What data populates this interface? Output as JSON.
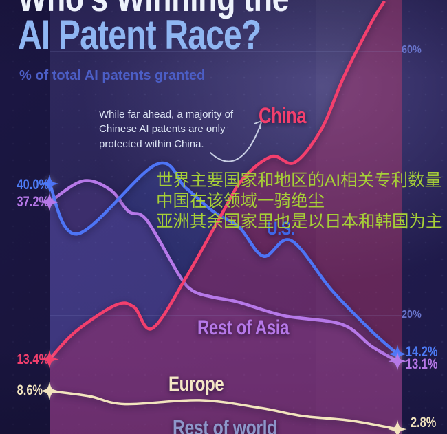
{
  "page": {
    "title_cropped": "Who's Winning the",
    "title": "AI Patent Race?",
    "subtitle": "% of total AI patents granted"
  },
  "annotation": {
    "text": "While far ahead, a majority of Chinese AI patents are only protected within China.",
    "arrow": "curved-arrow-to-china-line"
  },
  "overlay": {
    "color": "#a6cf37",
    "lines": [
      "世界主要国家和地区的AI相关专利数量",
      "中国在该领域一骑绝尘",
      "亚洲其余国家里也是以日本和韩国为主"
    ]
  },
  "value_labels": {
    "us_start": "40.0%",
    "asia_start": "37.2%",
    "china_start": "13.4%",
    "europe_start": "8.6%",
    "us_end": "14.2%",
    "asia_end": "13.1%",
    "europe_end": "2.8%"
  },
  "colors": {
    "background": "#231d51",
    "title": "#8fb6f2",
    "subtitle": "#4c5ec6",
    "annotation_text": "#dce4f4",
    "china": "#f23f6d",
    "us": "#4d74f5",
    "rest_of_asia": "#b678e8",
    "europe": "#f2e4be",
    "rest_of_world_label": "#8d96c9",
    "gridline_label": "#6974cc",
    "overlay_text": "#a6cf37"
  },
  "chart_data": {
    "type": "line",
    "title": "Who's Winning the AI Patent Race?",
    "subtitle": "% of total AI patents granted",
    "x_axis": {
      "label": "",
      "tick_labels_visible": false,
      "note": "time axis, year tick labels cropped below bottom edge"
    },
    "y_axis": {
      "unit": "%",
      "range_visible": [
        0,
        67
      ],
      "gridlines": [
        {
          "label": "60%",
          "pct": 60
        },
        {
          "label": "20%",
          "pct": 20
        }
      ]
    },
    "legend_position": "inline-labels-on-chart",
    "series": [
      {
        "name": "China",
        "color": "#f23f6d",
        "fill": "rgba(206,42,96,0.34)",
        "line_width": 4.5,
        "start_label": "13.4%",
        "end_label": null,
        "end_star": false,
        "note": "line rises past 60% and exits the top edge of the image",
        "points": [
          {
            "f": 0,
            "v": 13.4
          },
          {
            "f": 0.075,
            "v": 17.6
          },
          {
            "f": 0.19,
            "v": 21.6
          },
          {
            "f": 0.243,
            "v": 21.3
          },
          {
            "f": 0.296,
            "v": 18.1
          },
          {
            "f": 0.397,
            "v": 26.2
          },
          {
            "f": 0.496,
            "v": 35.5
          },
          {
            "f": 0.555,
            "v": 40.7
          },
          {
            "f": 0.638,
            "v": 44.1
          },
          {
            "f": 0.704,
            "v": 43.2
          },
          {
            "f": 0.781,
            "v": 48.2
          },
          {
            "f": 0.846,
            "v": 56.2
          },
          {
            "f": 0.925,
            "v": 64.4
          },
          {
            "f": 0.961,
            "v": 67.5
          }
        ]
      },
      {
        "name": "U.S.",
        "color": "#4d74f5",
        "fill": "rgba(77,116,245,0.16)",
        "line_width": 4.5,
        "start_label": "40.0%",
        "end_label": "14.2%",
        "end_star": true,
        "points": [
          {
            "f": 0,
            "v": 40.0
          },
          {
            "f": 0.081,
            "v": 32.4
          },
          {
            "f": 0.306,
            "v": 42.9
          },
          {
            "f": 0.391,
            "v": 39.4
          },
          {
            "f": 0.47,
            "v": 35.8
          },
          {
            "f": 0.545,
            "v": 33.4
          },
          {
            "f": 0.615,
            "v": 29.0
          },
          {
            "f": 0.694,
            "v": 31.4
          },
          {
            "f": 0.812,
            "v": 23.8
          },
          {
            "f": 0.925,
            "v": 17.7
          },
          {
            "f": 1,
            "v": 14.2
          }
        ]
      },
      {
        "name": "Rest of Asia",
        "color": "#b678e8",
        "fill": "rgba(170,110,230,0.15)",
        "line_width": 4.5,
        "start_label": "37.2%",
        "end_label": "13.1%",
        "end_star": true,
        "points": [
          {
            "f": 0,
            "v": 37.2
          },
          {
            "f": 0.095,
            "v": 40.4
          },
          {
            "f": 0.174,
            "v": 39.1
          },
          {
            "f": 0.227,
            "v": 35.8
          },
          {
            "f": 0.279,
            "v": 34.5
          },
          {
            "f": 0.372,
            "v": 26.2
          },
          {
            "f": 0.411,
            "v": 23.8
          },
          {
            "f": 0.47,
            "v": 22.8
          },
          {
            "f": 0.54,
            "v": 22.1
          },
          {
            "f": 0.674,
            "v": 20.0
          },
          {
            "f": 0.84,
            "v": 18.7
          },
          {
            "f": 0.925,
            "v": 15.4
          },
          {
            "f": 1,
            "v": 13.1
          }
        ]
      },
      {
        "name": "Europe",
        "color": "#f2e4be",
        "fill": "rgba(242,228,190,0.06)",
        "line_width": 3.5,
        "start_label": "8.6%",
        "end_label": "2.8%",
        "end_star": true,
        "points": [
          {
            "f": 0,
            "v": 8.6
          },
          {
            "f": 0.115,
            "v": 7.8
          },
          {
            "f": 0.217,
            "v": 6.6
          },
          {
            "f": 0.431,
            "v": 7.2
          },
          {
            "f": 0.609,
            "v": 6.0
          },
          {
            "f": 0.727,
            "v": 4.8
          },
          {
            "f": 0.866,
            "v": 4.1
          },
          {
            "f": 1,
            "v": 2.8
          }
        ]
      },
      {
        "name": "Rest of world",
        "color": "#8d96c9",
        "fill": null,
        "line_width": 0,
        "start_label": null,
        "end_label": null,
        "end_star": false,
        "note": "only the label is visible; its line is cropped below the bottom edge",
        "points": []
      }
    ]
  }
}
